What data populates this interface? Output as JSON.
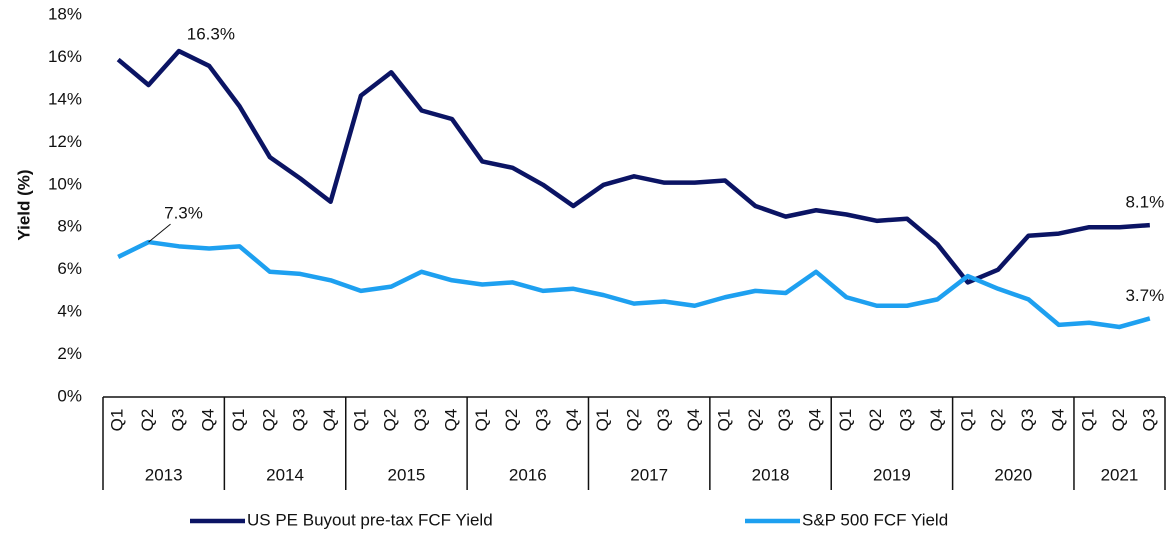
{
  "chart_data": {
    "type": "line",
    "y_label": "Yield (%)",
    "categories": [
      "Q1",
      "Q2",
      "Q3",
      "Q4",
      "Q1",
      "Q2",
      "Q3",
      "Q4",
      "Q1",
      "Q2",
      "Q3",
      "Q4",
      "Q1",
      "Q2",
      "Q3",
      "Q4",
      "Q1",
      "Q2",
      "Q3",
      "Q4",
      "Q1",
      "Q2",
      "Q3",
      "Q4",
      "Q1",
      "Q2",
      "Q3",
      "Q4",
      "Q1",
      "Q2",
      "Q3",
      "Q4",
      "Q1",
      "Q2",
      "Q3"
    ],
    "category_groups": [
      "2013",
      "2014",
      "2015",
      "2016",
      "2017",
      "2018",
      "2019",
      "2020",
      "2021"
    ],
    "series": [
      {
        "name": "US PE Buyout pre-tax FCF Yield",
        "color": "#0b1464",
        "values": [
          15.9,
          14.7,
          16.3,
          15.6,
          13.7,
          11.3,
          10.3,
          9.2,
          14.2,
          15.3,
          13.5,
          13.1,
          11.1,
          10.8,
          10.0,
          9.0,
          10.0,
          10.4,
          10.1,
          10.1,
          10.2,
          9.0,
          8.5,
          8.8,
          8.6,
          8.3,
          8.4,
          7.2,
          5.4,
          6.0,
          7.6,
          7.7,
          8.0,
          8.0,
          8.1
        ],
        "value_labels": [
          null,
          null,
          "16.3%",
          null,
          null,
          null,
          null,
          null,
          null,
          null,
          null,
          null,
          null,
          null,
          null,
          null,
          null,
          null,
          null,
          null,
          null,
          null,
          null,
          null,
          null,
          null,
          null,
          null,
          null,
          null,
          null,
          null,
          null,
          null,
          "8.1%"
        ]
      },
      {
        "name": "S&P 500 FCF Yield",
        "color": "#1ea0f0",
        "values": [
          6.6,
          7.3,
          7.1,
          7.0,
          7.1,
          5.9,
          5.8,
          5.5,
          5.0,
          5.2,
          5.9,
          5.5,
          5.3,
          5.4,
          5.0,
          5.1,
          4.8,
          4.4,
          4.5,
          4.3,
          4.7,
          5.0,
          4.9,
          5.9,
          4.7,
          4.3,
          4.3,
          4.6,
          5.7,
          5.1,
          4.6,
          3.4,
          3.5,
          3.3,
          3.7
        ],
        "value_labels": [
          null,
          "7.3%",
          null,
          null,
          null,
          null,
          null,
          null,
          null,
          null,
          null,
          null,
          null,
          null,
          null,
          null,
          null,
          null,
          null,
          null,
          null,
          null,
          null,
          null,
          null,
          null,
          null,
          null,
          null,
          null,
          null,
          null,
          null,
          null,
          "3.7%"
        ]
      }
    ],
    "ylim": [
      0,
      18
    ],
    "yticks": [
      {
        "value": 0,
        "label": "0%"
      },
      {
        "value": 2,
        "label": "2%"
      },
      {
        "value": 4,
        "label": "4%"
      },
      {
        "value": 6,
        "label": "6%"
      },
      {
        "value": 8,
        "label": "8%"
      },
      {
        "value": 10,
        "label": "10%"
      },
      {
        "value": 12,
        "label": "12%"
      },
      {
        "value": 14,
        "label": "14%"
      },
      {
        "value": 16,
        "label": "16%"
      },
      {
        "value": 18,
        "label": "18%"
      }
    ],
    "grid": false,
    "legend": "bottom"
  }
}
